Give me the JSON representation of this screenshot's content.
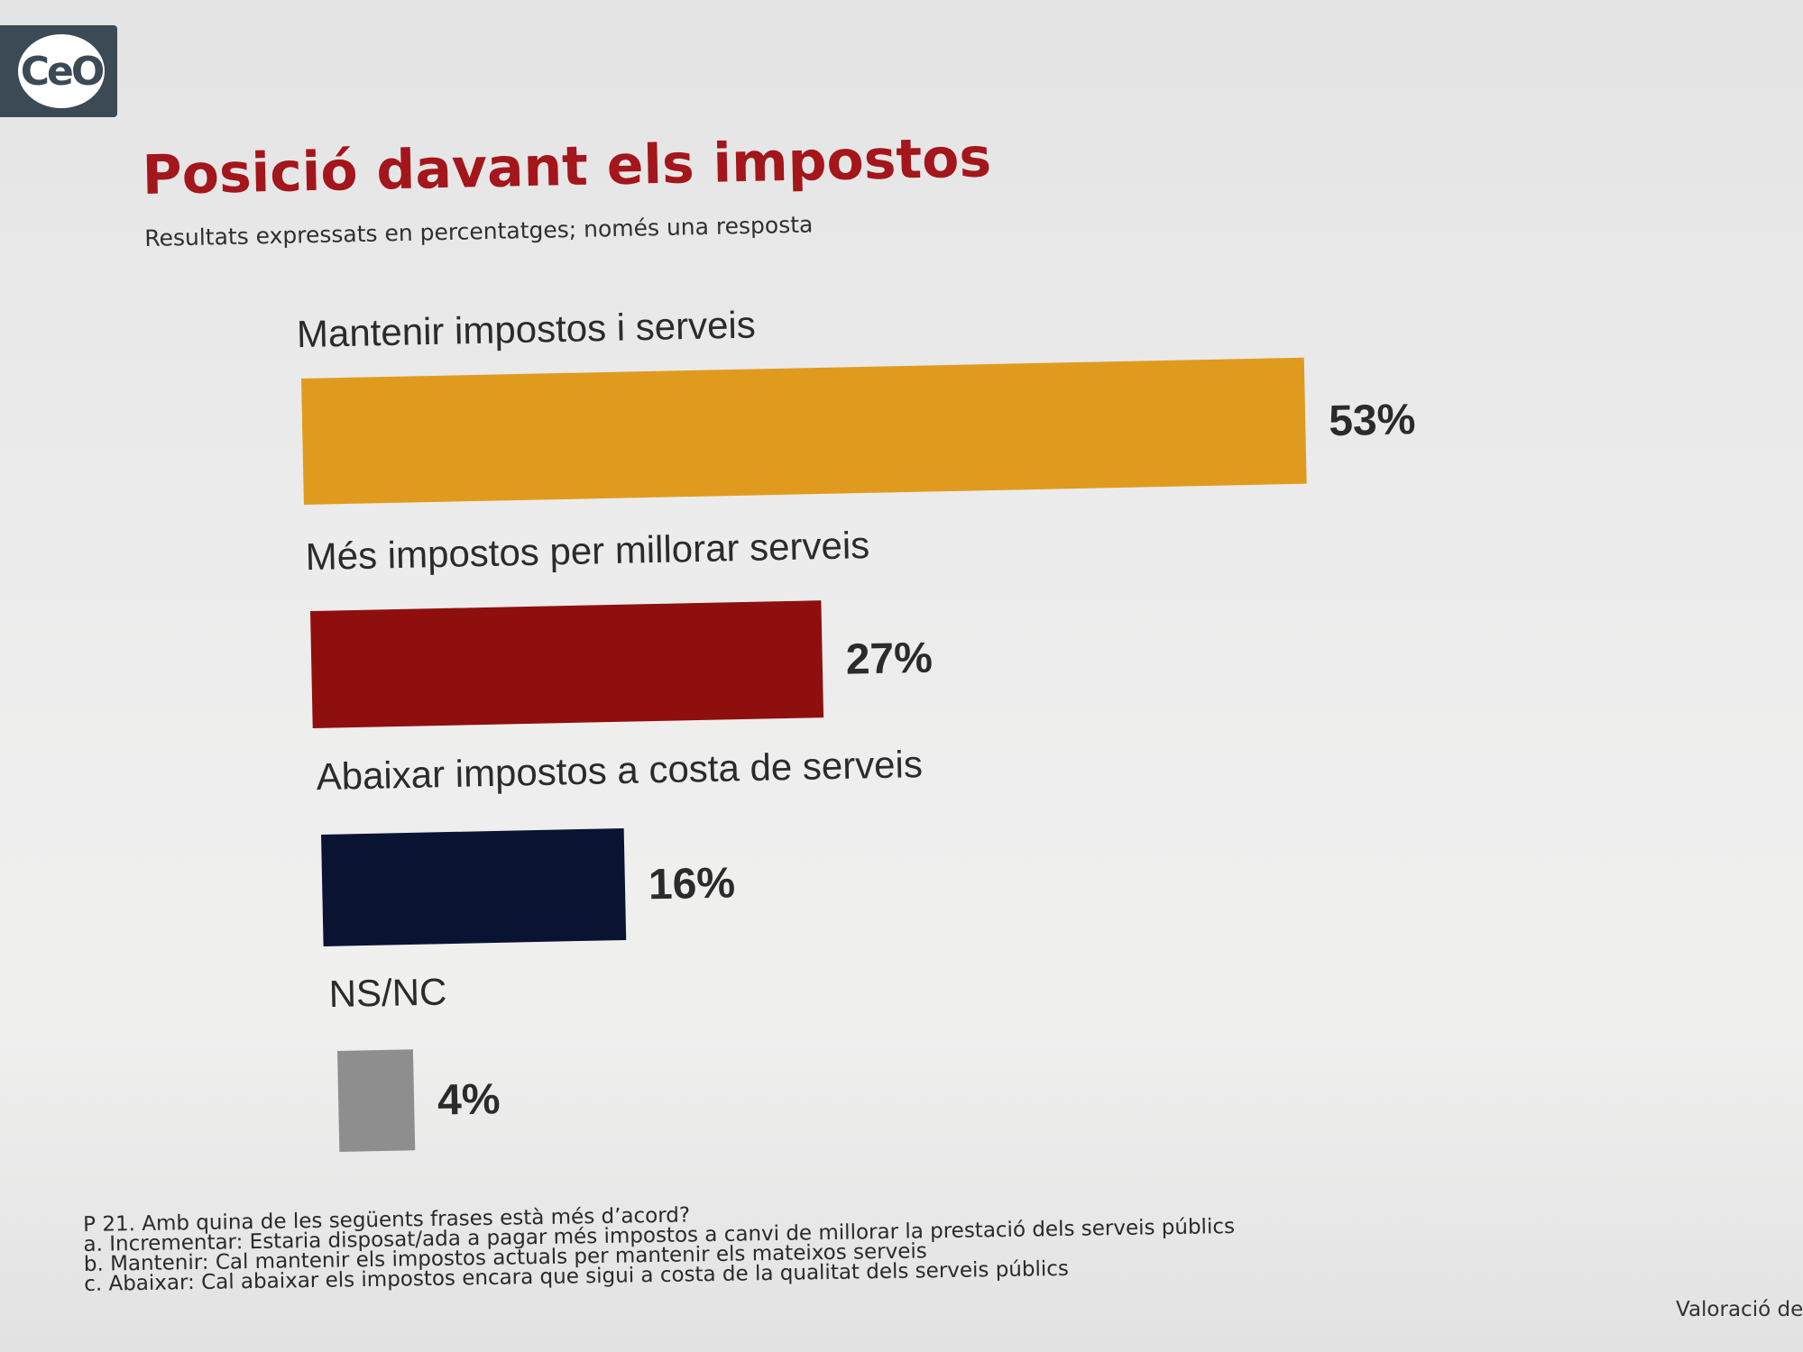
{
  "logo": {
    "text": "CeO"
  },
  "header": {
    "title": "Posició davant els impostos",
    "subtitle": "Resultats expressats en percentatges; només una resposta"
  },
  "chart_data": {
    "type": "bar",
    "orientation": "horizontal",
    "title": "Posició davant els impostos",
    "subtitle": "Resultats expressats en percentatges; només una resposta",
    "categories": [
      "Mantenir impostos i serveis",
      "Més impostos per millorar serveis",
      "Abaixar impostos a costa de serveis",
      "NS/NC"
    ],
    "values": [
      53,
      27,
      16,
      4
    ],
    "labels": [
      "53%",
      "27%",
      "16%",
      "4%"
    ],
    "colors": [
      "#e09b1f",
      "#8f0f0f",
      "#0b1333",
      "#8e8e8e"
    ],
    "unit": "%",
    "xlim": [
      0,
      53
    ],
    "grid": false,
    "legend": false
  },
  "footnote": {
    "lines": [
      "P 21. Amb quina de les següents frases està més d’acord?",
      "a. Incrementar: Estaria disposat/ada a pagar més impostos a canvi de millorar la prestació dels serveis públics",
      "b. Mantenir: Cal mantenir els impostos actuals per mantenir els mateixos serveis",
      "c. Abaixar: Cal abaixar els impostos encara que sigui a costa de la qualitat dels serveis públics"
    ]
  },
  "corner_note": "Valoració de"
}
